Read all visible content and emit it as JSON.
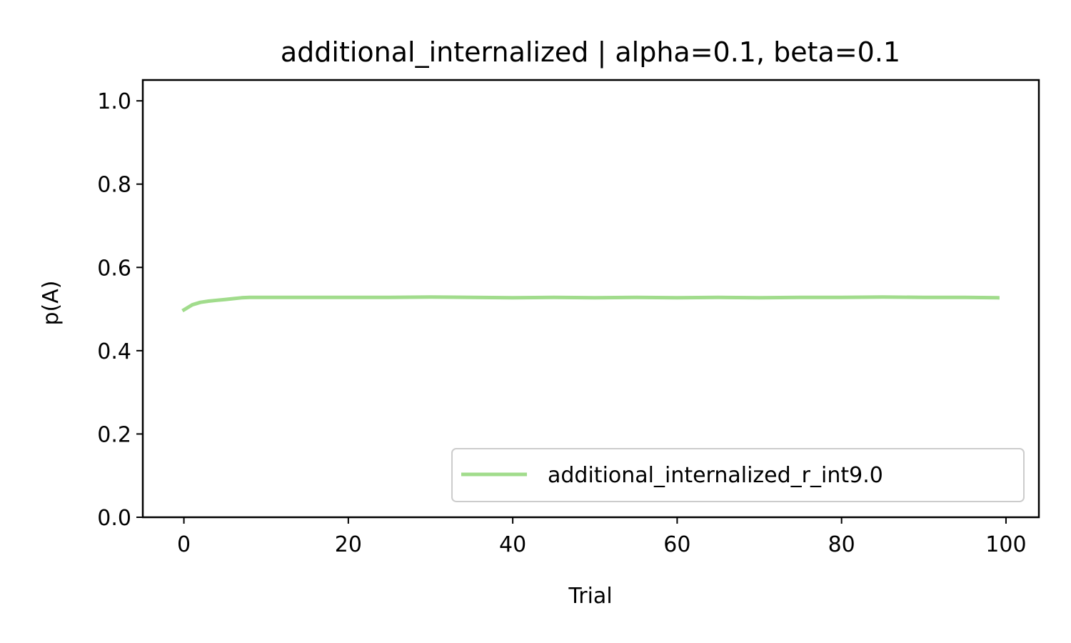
{
  "chart_data": {
    "type": "line",
    "title": "additional_internalized | alpha=0.1, beta=0.1",
    "xlabel": "Trial",
    "ylabel": "p(A)",
    "xlim": [
      -5,
      104
    ],
    "ylim": [
      0,
      1.05
    ],
    "xticks": [
      0,
      20,
      40,
      60,
      80,
      100
    ],
    "xtick_labels": [
      "0",
      "20",
      "40",
      "60",
      "80",
      "100"
    ],
    "yticks": [
      0.0,
      0.2,
      0.4,
      0.6,
      0.8,
      1.0
    ],
    "ytick_labels": [
      "0.0",
      "0.2",
      "0.4",
      "0.6",
      "0.8",
      "1.0"
    ],
    "grid": false,
    "legend_position": "lower-right",
    "series": [
      {
        "name": "additional_internalized_r_int9.0",
        "color": "#a1dc8c",
        "x": [
          0,
          1,
          2,
          3,
          4,
          5,
          6,
          7,
          8,
          10,
          15,
          20,
          25,
          30,
          35,
          40,
          45,
          50,
          55,
          60,
          65,
          70,
          75,
          80,
          85,
          90,
          95,
          99
        ],
        "y": [
          0.498,
          0.51,
          0.516,
          0.519,
          0.521,
          0.523,
          0.525,
          0.527,
          0.528,
          0.528,
          0.528,
          0.528,
          0.528,
          0.529,
          0.528,
          0.527,
          0.528,
          0.527,
          0.528,
          0.527,
          0.528,
          0.527,
          0.528,
          0.528,
          0.529,
          0.528,
          0.528,
          0.527
        ]
      }
    ]
  }
}
